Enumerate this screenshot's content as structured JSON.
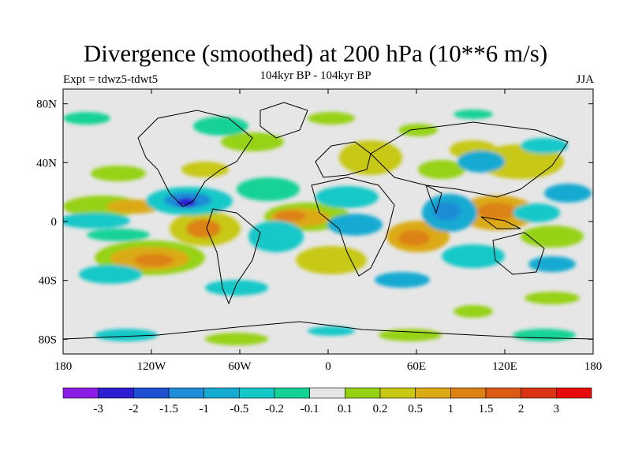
{
  "header": {
    "title": "Divergence (smoothed) at 200 hPa (10**6 m/s)",
    "experiment": "Expt = tdwz5-tdwt5",
    "period": "104kyr BP - 104kyr BP",
    "season": "JJA"
  },
  "map": {
    "lon_range": [
      -180,
      180
    ],
    "lat_range": [
      -90,
      90
    ],
    "lat_ticks": [
      {
        "value": 80,
        "label": "80N"
      },
      {
        "value": 40,
        "label": "40N"
      },
      {
        "value": 0,
        "label": "0"
      },
      {
        "value": -40,
        "label": "40S"
      },
      {
        "value": -80,
        "label": "80S"
      }
    ],
    "lon_ticks": [
      {
        "value": -180,
        "label": "180"
      },
      {
        "value": -120,
        "label": "120W"
      },
      {
        "value": -60,
        "label": "60W"
      },
      {
        "value": 0,
        "label": "0"
      },
      {
        "value": 60,
        "label": "60E"
      },
      {
        "value": 120,
        "label": "120E"
      },
      {
        "value": 180,
        "label": "180"
      }
    ],
    "background_color": "#e6e6e6",
    "projection": "equirectangular (Atlantic-centered)"
  },
  "colorbar": {
    "colors": [
      "#8a1ee6",
      "#2d1ed2",
      "#1e50d2",
      "#1e8cd7",
      "#14aad2",
      "#14c8c8",
      "#14d296",
      "#e6e6e6",
      "#96d214",
      "#c8c814",
      "#dcaa14",
      "#dc8214",
      "#dc5a14",
      "#dc3214",
      "#e60a0a"
    ],
    "labels": [
      "-3",
      "-2",
      "-1.5",
      "-1",
      "-0.5",
      "-0.2",
      "-0.1",
      "0.1",
      "0.2",
      "0.5",
      "1",
      "1.5",
      "2",
      "3"
    ]
  }
}
